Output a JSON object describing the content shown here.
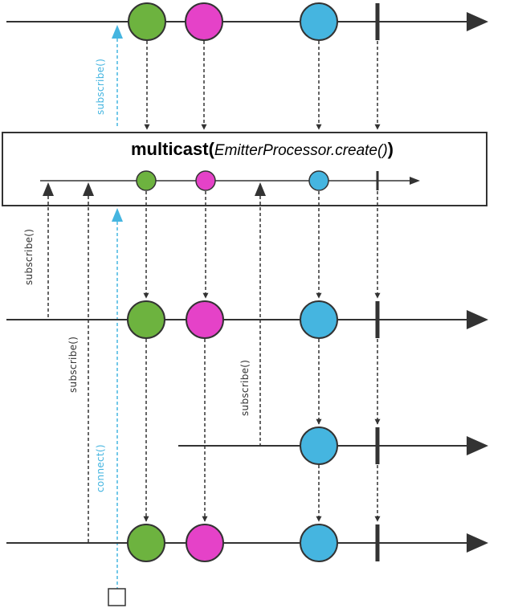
{
  "operator": {
    "name": "multicast",
    "open_paren": "(",
    "argument": "EmitterProcessor.create()",
    "close_paren": ")"
  },
  "labels": {
    "subscribe": "subscribe()",
    "connect": "connect()"
  },
  "colors": {
    "green": "#6db33f",
    "magenta": "#e542c8",
    "blue": "#45b5e0",
    "connect_cyan": "#45b5e0",
    "line": "#333333",
    "arrowhead": "#333333"
  },
  "timelines": [
    {
      "id": "source",
      "events": [
        "green",
        "magenta",
        "blue",
        "complete"
      ]
    },
    {
      "id": "processor",
      "events": [
        "green",
        "magenta",
        "blue",
        "complete"
      ]
    },
    {
      "id": "subscriber-1",
      "events": [
        "green",
        "magenta",
        "blue",
        "complete"
      ]
    },
    {
      "id": "subscriber-2",
      "events": [
        "blue",
        "complete"
      ]
    },
    {
      "id": "subscriber-3",
      "events": [
        "green",
        "magenta",
        "blue",
        "complete"
      ]
    }
  ]
}
